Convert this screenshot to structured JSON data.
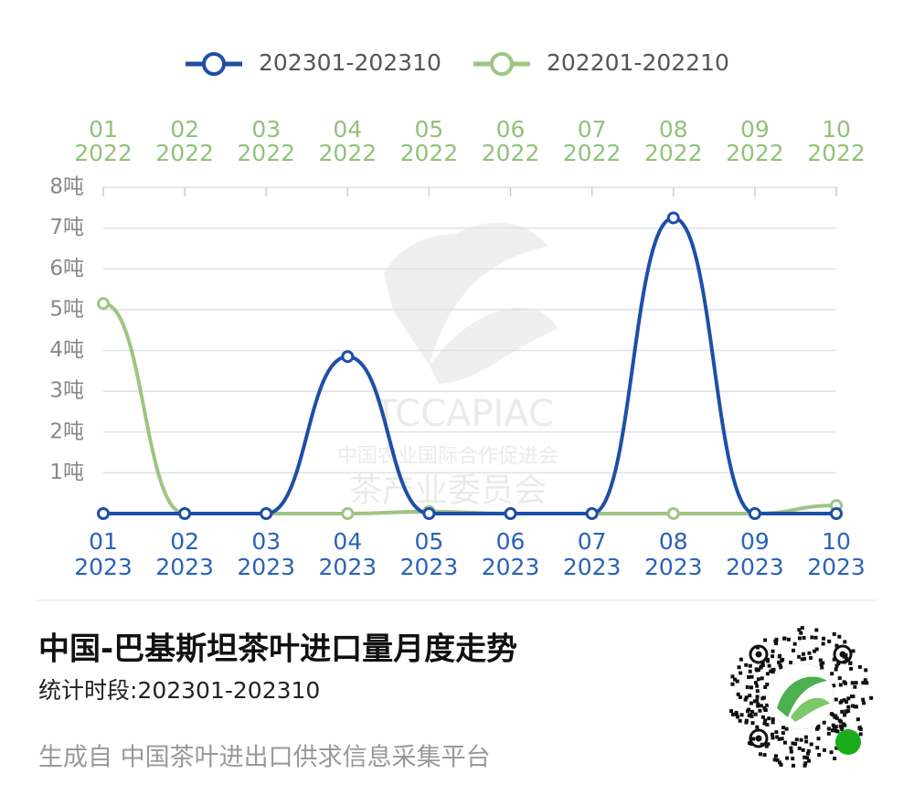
{
  "chart_data": {
    "type": "line",
    "title": "中国-巴基斯坦茶叶进口量月度走势",
    "subtitle": "统计时段:202301-202310",
    "source": "生成自 中国茶叶进出口供求信息采集平台",
    "watermark": [
      "TCCAPIAC",
      "中国农业国际合作促进会",
      "茶产业委员会"
    ],
    "categories": [
      "01",
      "02",
      "03",
      "04",
      "05",
      "06",
      "07",
      "08",
      "09",
      "10"
    ],
    "category_years": [
      "2023",
      "2023",
      "2023",
      "2023",
      "2023",
      "2023",
      "2023",
      "2023",
      "2023",
      "2023"
    ],
    "top_categories": [
      "01",
      "02",
      "03",
      "04",
      "05",
      "06",
      "07",
      "08",
      "09",
      "10"
    ],
    "top_category_years": [
      "2022",
      "2022",
      "2022",
      "2022",
      "2022",
      "2022",
      "2022",
      "2022",
      "2022",
      "2022"
    ],
    "series": [
      {
        "name": "202301-202310",
        "color": "#1d4fa8",
        "values": [
          0,
          0,
          0,
          3.85,
          0,
          0,
          0,
          7.25,
          0,
          0
        ]
      },
      {
        "name": "202201-202210",
        "color": "#9dc583",
        "values": [
          5.15,
          0,
          0,
          0,
          0.05,
          0,
          0,
          0,
          0,
          0.2
        ]
      }
    ],
    "ylim": [
      0,
      8
    ],
    "yticks": [
      {
        "value": 1,
        "label": "1吨"
      },
      {
        "value": 2,
        "label": "2吨"
      },
      {
        "value": 3,
        "label": "3吨"
      },
      {
        "value": 4,
        "label": "4吨"
      },
      {
        "value": 5,
        "label": "5吨"
      },
      {
        "value": 6,
        "label": "6吨"
      },
      {
        "value": 7,
        "label": "7吨"
      },
      {
        "value": 8,
        "label": "8吨"
      }
    ],
    "grid": true
  }
}
